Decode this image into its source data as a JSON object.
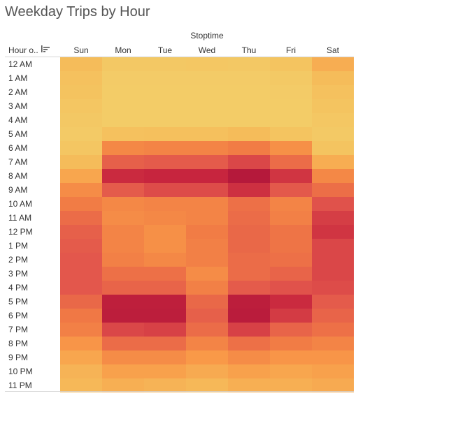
{
  "title": "Weekday Trips by Hour",
  "column_header_title": "Stoptime",
  "row_header_label": "Hour o..",
  "sort_icon": "sort-descending-icon",
  "chart_data": {
    "type": "heatmap",
    "title": "Weekday Trips by Hour",
    "xlabel": "Stoptime",
    "ylabel": "Hour o..",
    "x": [
      "Sun",
      "Mon",
      "Tue",
      "Wed",
      "Thu",
      "Fri",
      "Sat"
    ],
    "y": [
      "12 AM",
      "1 AM",
      "2 AM",
      "3 AM",
      "4 AM",
      "5 AM",
      "6 AM",
      "7 AM",
      "8 AM",
      "9 AM",
      "10 AM",
      "11 AM",
      "12 PM",
      "1 PM",
      "2 PM",
      "3 PM",
      "4 PM",
      "5 PM",
      "6 PM",
      "7 PM",
      "8 PM",
      "9 PM",
      "10 PM",
      "11 PM"
    ],
    "values": [
      [
        0.18,
        0.08,
        0.08,
        0.09,
        0.08,
        0.12,
        0.25
      ],
      [
        0.15,
        0.05,
        0.05,
        0.05,
        0.05,
        0.07,
        0.18
      ],
      [
        0.13,
        0.04,
        0.04,
        0.04,
        0.04,
        0.05,
        0.15
      ],
      [
        0.1,
        0.04,
        0.04,
        0.04,
        0.04,
        0.04,
        0.12
      ],
      [
        0.08,
        0.04,
        0.04,
        0.04,
        0.04,
        0.04,
        0.09
      ],
      [
        0.06,
        0.15,
        0.16,
        0.16,
        0.18,
        0.12,
        0.07
      ],
      [
        0.1,
        0.42,
        0.44,
        0.44,
        0.48,
        0.38,
        0.12
      ],
      [
        0.18,
        0.62,
        0.64,
        0.64,
        0.72,
        0.56,
        0.25
      ],
      [
        0.28,
        0.82,
        0.84,
        0.84,
        1.0,
        0.78,
        0.42
      ],
      [
        0.4,
        0.64,
        0.7,
        0.7,
        0.8,
        0.65,
        0.55
      ],
      [
        0.48,
        0.42,
        0.44,
        0.44,
        0.54,
        0.44,
        0.68
      ],
      [
        0.56,
        0.4,
        0.42,
        0.44,
        0.56,
        0.46,
        0.75
      ],
      [
        0.62,
        0.44,
        0.38,
        0.48,
        0.58,
        0.52,
        0.78
      ],
      [
        0.64,
        0.44,
        0.38,
        0.46,
        0.58,
        0.52,
        0.72
      ],
      [
        0.66,
        0.46,
        0.42,
        0.46,
        0.56,
        0.54,
        0.72
      ],
      [
        0.66,
        0.54,
        0.54,
        0.4,
        0.56,
        0.6,
        0.72
      ],
      [
        0.66,
        0.6,
        0.6,
        0.46,
        0.64,
        0.68,
        0.7
      ],
      [
        0.58,
        0.92,
        0.92,
        0.58,
        0.94,
        0.82,
        0.64
      ],
      [
        0.5,
        0.94,
        0.94,
        0.62,
        0.96,
        0.76,
        0.6
      ],
      [
        0.46,
        0.72,
        0.74,
        0.56,
        0.74,
        0.6,
        0.54
      ],
      [
        0.36,
        0.56,
        0.56,
        0.44,
        0.54,
        0.48,
        0.44
      ],
      [
        0.28,
        0.4,
        0.4,
        0.34,
        0.4,
        0.36,
        0.36
      ],
      [
        0.22,
        0.3,
        0.3,
        0.26,
        0.3,
        0.28,
        0.3
      ],
      [
        0.2,
        0.24,
        0.22,
        0.2,
        0.24,
        0.24,
        0.26
      ]
    ],
    "legend": "none",
    "grid": false
  },
  "colors": {
    "scale": [
      "#f2d06b",
      "#f5bf5c",
      "#f99a48",
      "#f07845",
      "#e2564c",
      "#c8263e",
      "#b5193b"
    ]
  }
}
